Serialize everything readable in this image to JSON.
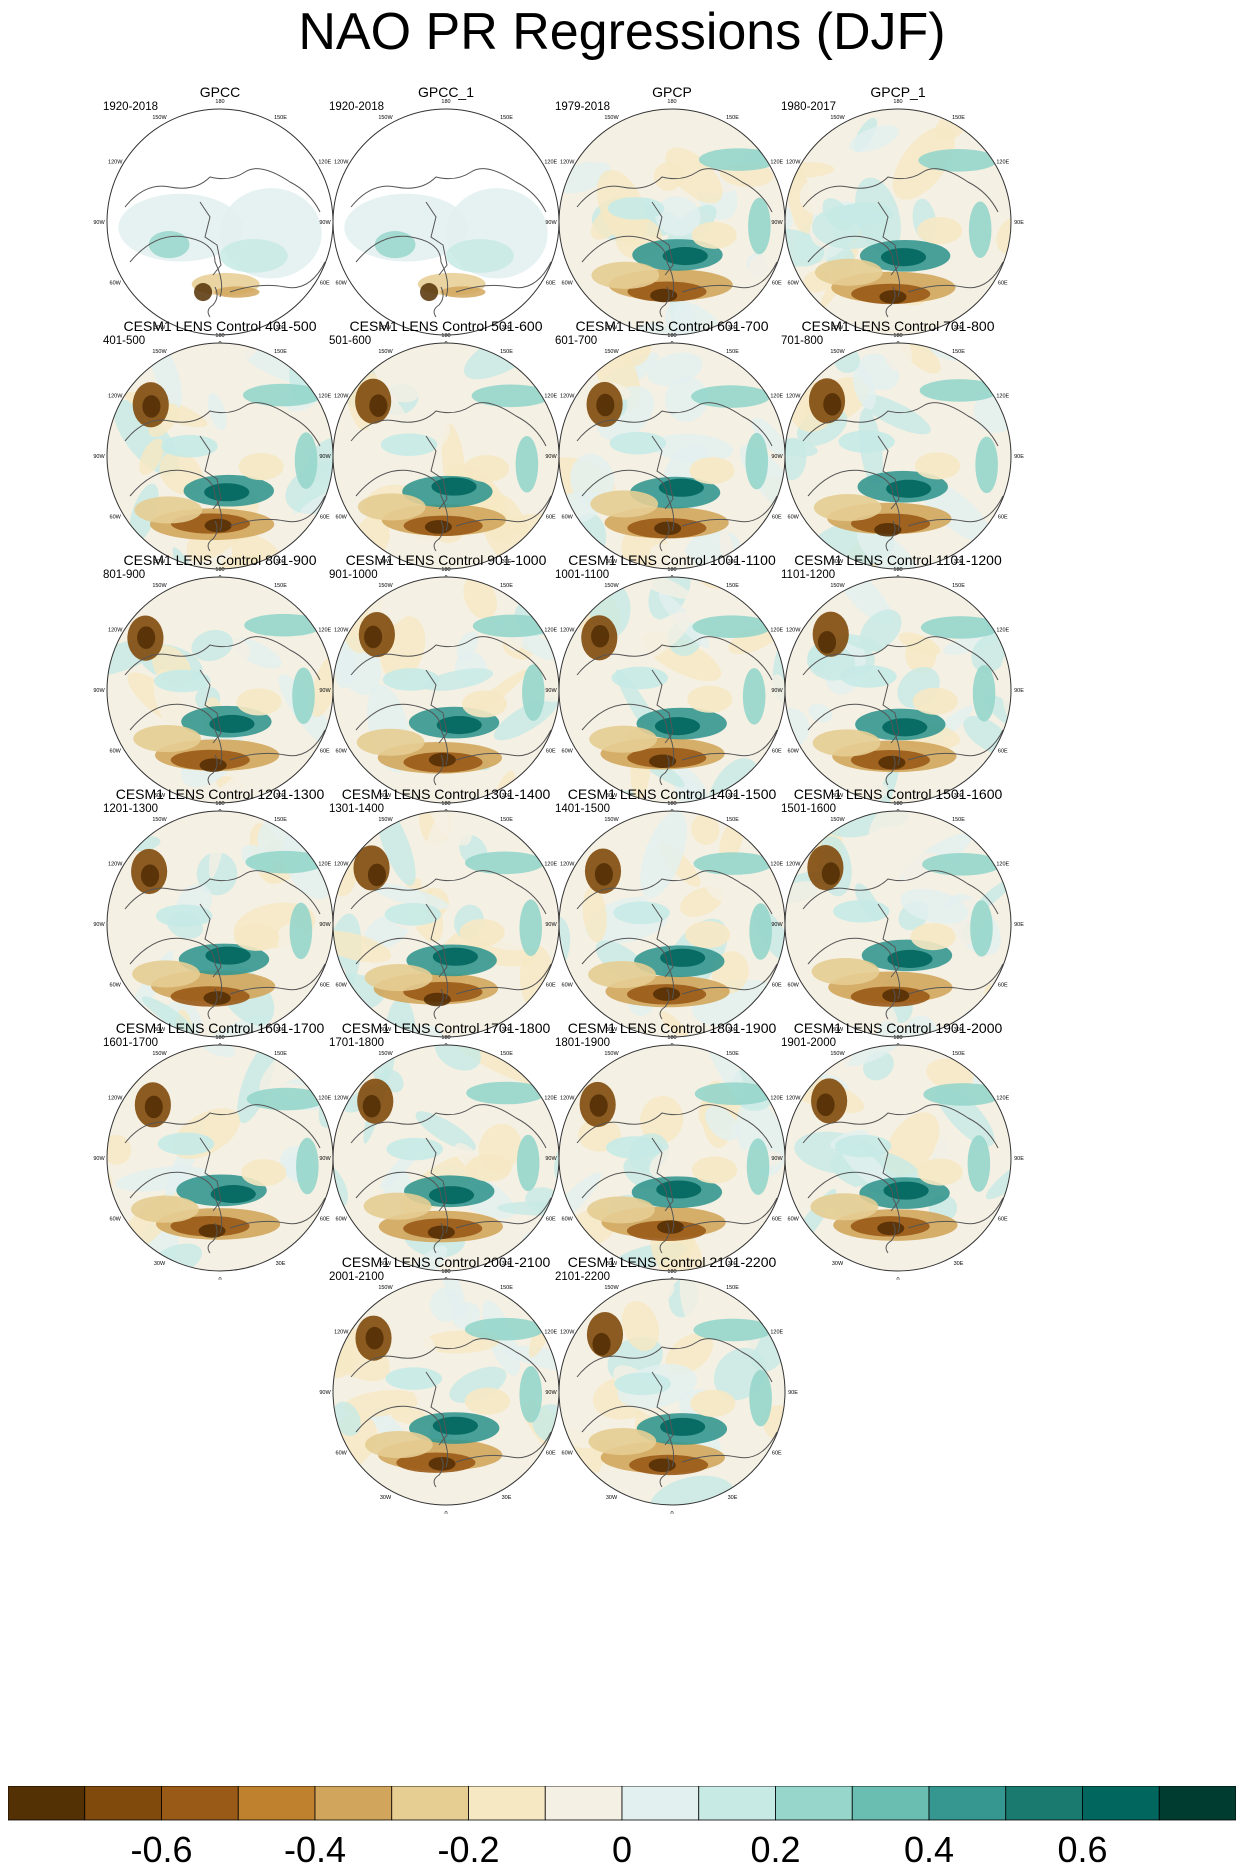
{
  "title": "NAO PR Regressions (DJF)",
  "chart_data": {
    "type": "heatmap",
    "projection": "north polar stereographic",
    "panels": [
      {
        "title": "GPCC",
        "period": "1920-2018",
        "land_only": true
      },
      {
        "title": "GPCC_1",
        "period": "1920-2018",
        "land_only": true
      },
      {
        "title": "GPCP",
        "period": "1979-2018"
      },
      {
        "title": "GPCP_1",
        "period": "1980-2017"
      },
      {
        "title": "CESM1 LENS Control 401-500",
        "period": "401-500"
      },
      {
        "title": "CESM1 LENS Control 501-600",
        "period": "501-600"
      },
      {
        "title": "CESM1 LENS Control 601-700",
        "period": "601-700"
      },
      {
        "title": "CESM1 LENS Control 701-800",
        "period": "701-800"
      },
      {
        "title": "CESM1 LENS Control 801-900",
        "period": "801-900"
      },
      {
        "title": "CESM1 LENS Control 901-1000",
        "period": "901-1000"
      },
      {
        "title": "CESM1 LENS Control 1001-1100",
        "period": "1001-1100"
      },
      {
        "title": "CESM1 LENS Control 1101-1200",
        "period": "1101-1200"
      },
      {
        "title": "CESM1 LENS Control 1201-1300",
        "period": "1201-1300"
      },
      {
        "title": "CESM1 LENS Control 1301-1400",
        "period": "1301-1400"
      },
      {
        "title": "CESM1 LENS Control 1401-1500",
        "period": "1401-1500"
      },
      {
        "title": "CESM1 LENS Control 1501-1600",
        "period": "1501-1600"
      },
      {
        "title": "CESM1 LENS Control 1601-1700",
        "period": "1601-1700"
      },
      {
        "title": "CESM1 LENS Control 1701-1800",
        "period": "1701-1800"
      },
      {
        "title": "CESM1 LENS Control 1801-1900",
        "period": "1801-1900"
      },
      {
        "title": "CESM1 LENS Control 1901-2000",
        "period": "1901-2000"
      },
      {
        "title": "CESM1 LENS Control 2001-2100",
        "period": "2001-2100"
      },
      {
        "title": "CESM1 LENS Control 2101-2200",
        "period": "2101-2200"
      }
    ],
    "longitude_labels": [
      "180",
      "150E",
      "120E",
      "90E",
      "60E",
      "30E",
      "0",
      "30W",
      "60W",
      "90W",
      "120W",
      "150W"
    ],
    "colorbar": {
      "colors": [
        "#543005",
        "#7f4a0c",
        "#9a5a17",
        "#bf812d",
        "#d1a65c",
        "#e6cd92",
        "#f6e8c3",
        "#f5f0e4",
        "#e2f0ef",
        "#c7eae5",
        "#96d6cb",
        "#69bdb1",
        "#35978f",
        "#1b7a70",
        "#01665e",
        "#003c30"
      ],
      "ticks": [
        "-0.6",
        "-0.4",
        "-0.2",
        "0",
        "0.2",
        "0.4",
        "0.6"
      ],
      "tick_values": [
        -0.6,
        -0.4,
        -0.2,
        0,
        0.2,
        0.4,
        0.6
      ]
    }
  }
}
